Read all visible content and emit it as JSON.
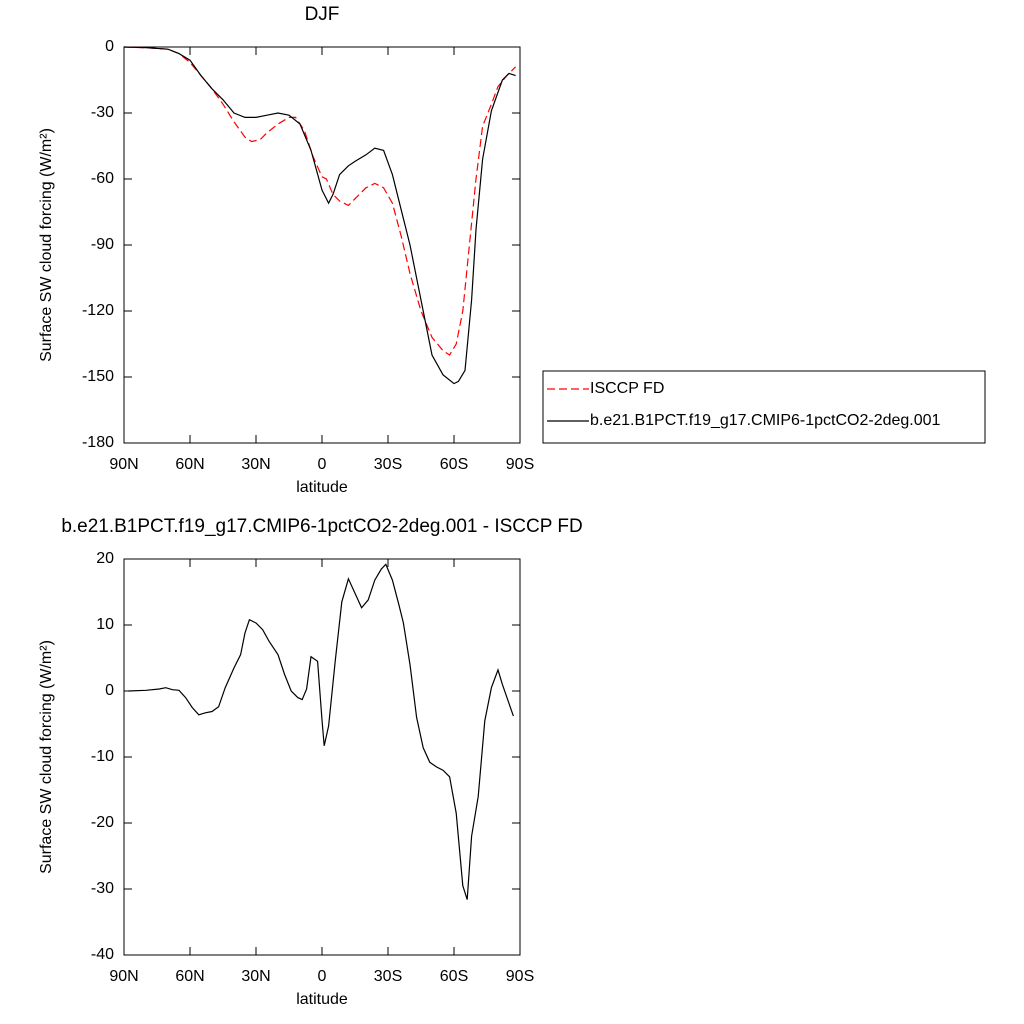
{
  "chart_data": [
    {
      "type": "line",
      "title": "DJF",
      "xlabel": "latitude",
      "ylabel": "Surface SW cloud forcing (W/m²)",
      "xlim": [
        90,
        -90
      ],
      "ylim": [
        0,
        -180
      ],
      "xticks": [
        {
          "value": 90,
          "label": "90N"
        },
        {
          "value": 60,
          "label": "60N"
        },
        {
          "value": 30,
          "label": "30N"
        },
        0,
        {
          "value": -30,
          "label": "30S"
        },
        {
          "value": -60,
          "label": "60S"
        },
        {
          "value": -90,
          "label": "90S"
        }
      ],
      "yticks": [
        0,
        -30,
        -60,
        -90,
        -120,
        -150,
        -180
      ],
      "legend": "outside-right",
      "series": [
        {
          "name": "ISCCP FD",
          "color": "#ff0000",
          "dash": true,
          "x": [
            90,
            80,
            70,
            65,
            60,
            55,
            50,
            45,
            40,
            35,
            32,
            28,
            25,
            20,
            15,
            12,
            8,
            4,
            0,
            -2,
            -5,
            -8,
            -12,
            -16,
            -20,
            -24,
            -28,
            -32,
            -36,
            -40,
            -45,
            -50,
            -55,
            -58,
            -61,
            -64,
            -67,
            -70,
            -73,
            -77,
            -80,
            -84,
            -88
          ],
          "values": [
            0,
            -0.3,
            -1,
            -3,
            -7,
            -13,
            -19,
            -26,
            -34,
            -41,
            -43,
            -42,
            -39,
            -35,
            -32,
            -32,
            -38,
            -50,
            -59,
            -60,
            -67,
            -70,
            -72,
            -68,
            -64,
            -62,
            -64,
            -71,
            -86,
            -103,
            -120,
            -132,
            -138,
            -140,
            -135,
            -120,
            -90,
            -60,
            -36,
            -26,
            -18,
            -13,
            -9
          ]
        },
        {
          "name": "b.e21.B1PCT.f19_g17.CMIP6-1pctCO2-2deg.001",
          "color": "#000000",
          "dash": false,
          "x": [
            90,
            80,
            70,
            65,
            60,
            55,
            50,
            45,
            40,
            35,
            30,
            25,
            20,
            15,
            10,
            5,
            0,
            -3,
            -5,
            -8,
            -12,
            -15,
            -20,
            -24,
            -28,
            -32,
            -36,
            -40,
            -45,
            -50,
            -55,
            -60,
            -62,
            -65,
            -68,
            -70,
            -73,
            -77,
            -82,
            -85,
            -88
          ],
          "values": [
            0,
            -0.3,
            -1,
            -3,
            -6,
            -13,
            -19,
            -24,
            -30,
            -32,
            -32,
            -31,
            -30,
            -31,
            -35,
            -47,
            -65,
            -71,
            -67,
            -58,
            -54,
            -52,
            -49,
            -46,
            -47,
            -58,
            -74,
            -90,
            -115,
            -140,
            -149,
            -153,
            -152,
            -147,
            -115,
            -83,
            -51,
            -29,
            -15,
            -12,
            -13
          ]
        }
      ]
    },
    {
      "type": "line",
      "title": "b.e21.B1PCT.f19_g17.CMIP6-1pctCO2-2deg.001 - ISCCP FD",
      "xlabel": "latitude",
      "ylabel": "Surface SW cloud forcing (W/m²)",
      "xlim": [
        90,
        -90
      ],
      "ylim": [
        20,
        -40
      ],
      "xticks": [
        {
          "value": 90,
          "label": "90N"
        },
        {
          "value": 60,
          "label": "60N"
        },
        {
          "value": 30,
          "label": "30N"
        },
        0,
        {
          "value": -30,
          "label": "30S"
        },
        {
          "value": -60,
          "label": "60S"
        },
        {
          "value": -90,
          "label": "90S"
        }
      ],
      "yticks": [
        20,
        10,
        0,
        -10,
        -20,
        -30,
        -40
      ],
      "series": [
        {
          "color": "#000000",
          "dash": false,
          "x": [
            88,
            80,
            74,
            71,
            68,
            65,
            62,
            59,
            56,
            53,
            50,
            47,
            44,
            40,
            37,
            35,
            33,
            30,
            27,
            24,
            20,
            17,
            14,
            11,
            9,
            7,
            5,
            2,
            0,
            -1,
            -3,
            -6,
            -9,
            -12,
            -15,
            -18,
            -21,
            -24,
            -27,
            -29,
            -32,
            -35,
            -37,
            -40,
            -43,
            -46,
            -49,
            -52,
            -55,
            -58,
            -61,
            -64,
            -66,
            -68,
            -71,
            -74,
            -77,
            -80,
            -82,
            -87
          ],
          "values": [
            0,
            0.1,
            0.3,
            0.5,
            0.2,
            0.1,
            -1,
            -2.5,
            -3.6,
            -3.3,
            -3.1,
            -2.4,
            0.5,
            3.5,
            5.5,
            8.8,
            10.8,
            10.3,
            9.3,
            7.5,
            5.5,
            2.5,
            0,
            -1,
            -1.3,
            0.3,
            5.2,
            4.5,
            -4.4,
            -8.3,
            -5.3,
            4.5,
            13.5,
            17,
            14.8,
            12.6,
            13.8,
            16.8,
            18.5,
            19.2,
            16.8,
            13,
            10.3,
            4,
            -4,
            -8.6,
            -10.8,
            -11.5,
            -12,
            -13,
            -18.5,
            -29.5,
            -31.6,
            -22,
            -16,
            -4.5,
            0.5,
            3.2,
            1,
            -3.8
          ]
        }
      ]
    }
  ]
}
